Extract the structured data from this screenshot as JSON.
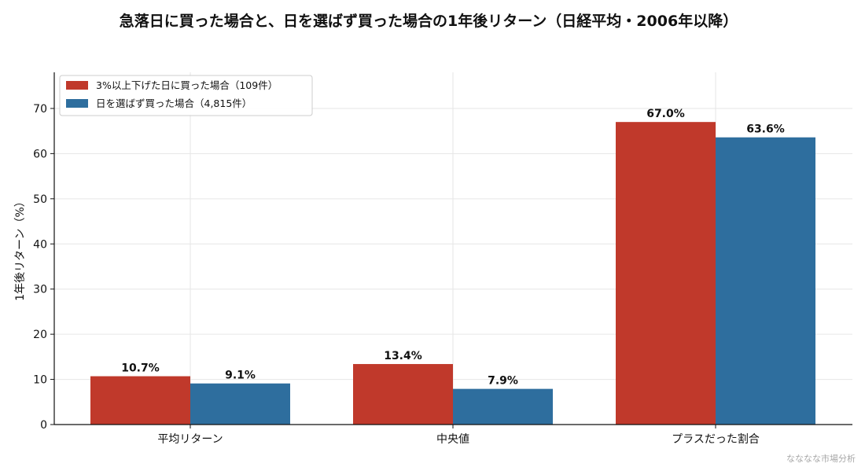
{
  "chart_data": {
    "type": "bar",
    "title": "急落日に買った場合と、日を選ばず買った場合の1年後リターン（日経平均・2006年以降）",
    "xlabel": "",
    "ylabel": "1年後リターン（%）",
    "categories": [
      "平均リターン",
      "中央値",
      "プラスだった割合"
    ],
    "series": [
      {
        "name": "3%以上下げた日に買った場合（109件）",
        "values": [
          10.7,
          13.4,
          67.0
        ],
        "labels": [
          "10.7%",
          "13.4%",
          "67.0%"
        ],
        "color": "#c0392b"
      },
      {
        "name": "日を選ばず買った場合（4,815件）",
        "values": [
          9.1,
          7.9,
          63.6
        ],
        "labels": [
          "9.1%",
          "7.9%",
          "63.6%"
        ],
        "color": "#2e6e9e"
      }
    ],
    "ylim": [
      0,
      78
    ],
    "yticks": [
      "0",
      "10",
      "20",
      "30",
      "40",
      "50",
      "60",
      "70"
    ],
    "grid": true,
    "legend_position": "top-left"
  },
  "credit": "なななな市場分析"
}
